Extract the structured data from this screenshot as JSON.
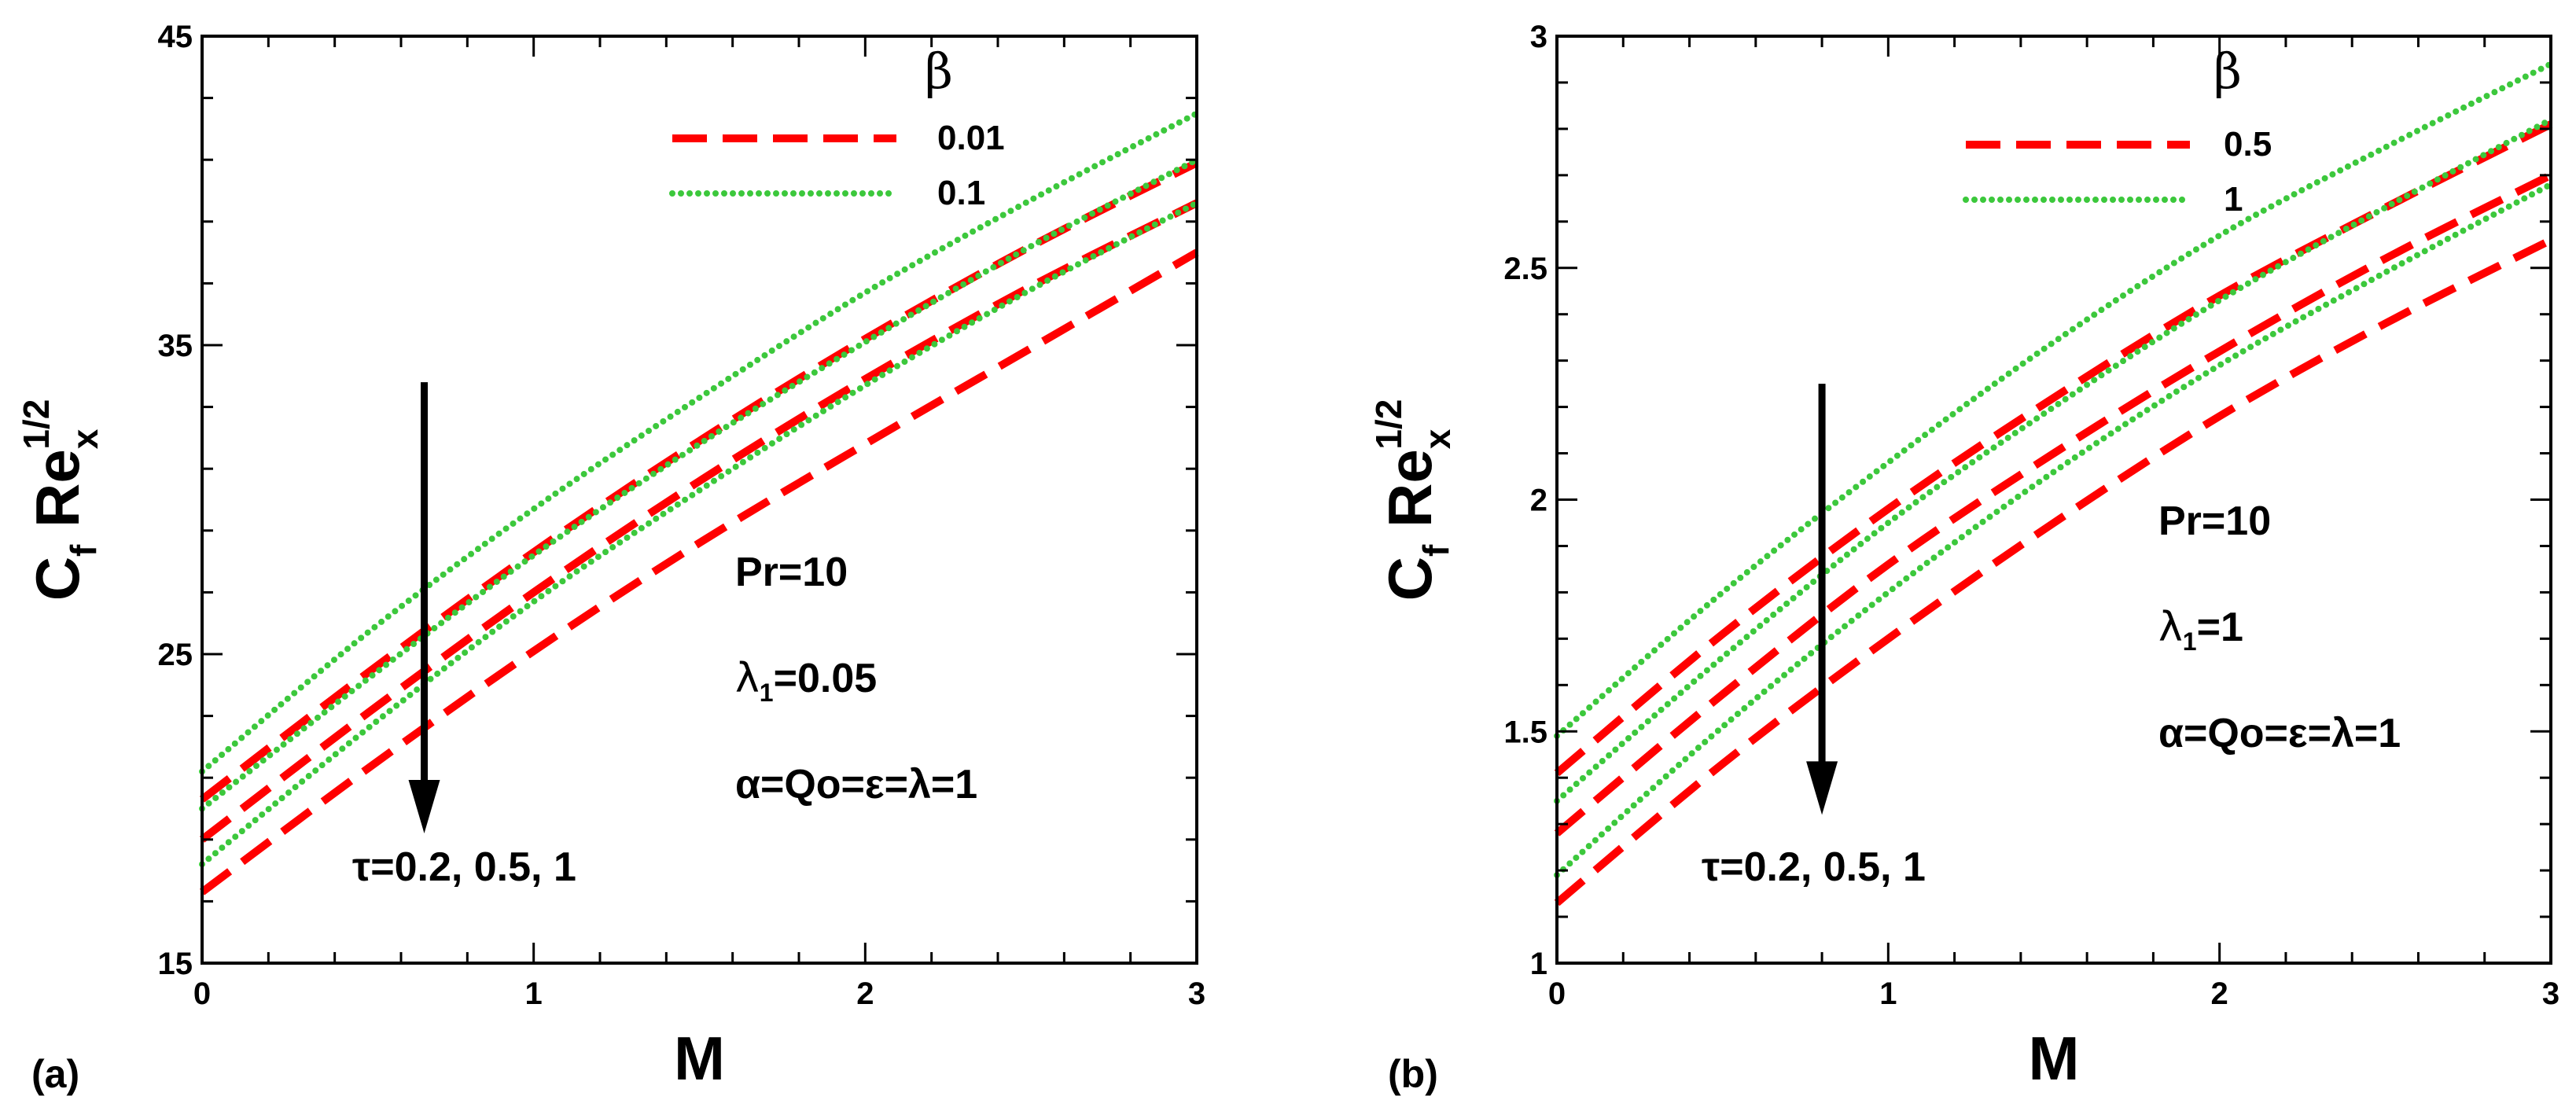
{
  "colors": {
    "red": "#ff0000",
    "green": "#3cc83c",
    "axis": "#000000"
  },
  "chart_data": [
    {
      "type": "line",
      "panel_label": "(a)",
      "xlabel": "M",
      "ylabel_main": "C",
      "ylabel_sub_f": "f",
      "ylabel_re": "Re",
      "ylabel_sub_x": "x",
      "ylabel_sup": "1/2",
      "xlim": [
        0,
        3
      ],
      "ylim": [
        15,
        45
      ],
      "xticks": [
        0,
        1,
        2,
        3
      ],
      "xtick_labels": [
        "0",
        "1",
        "2",
        "3"
      ],
      "yticks": [
        15,
        25,
        35,
        45
      ],
      "ytick_labels": [
        "15",
        "25",
        "35",
        "45"
      ],
      "legend": {
        "title": "β",
        "position": "top-right",
        "entries": [
          {
            "label": "0.01",
            "color": "red",
            "style": "dashed"
          },
          {
            "label": "0.1",
            "color": "green",
            "style": "dotted"
          }
        ]
      },
      "annotations": {
        "pr": "Pr=10",
        "lambda_sym": "λ",
        "lambda_sub": "1",
        "lambda_val": "=0.05",
        "params": "α=Qo=ε=λ=1",
        "tau": "τ=0.2, 0.5, 1"
      },
      "arrow": {
        "x": 0.67,
        "y_start": 33.8,
        "y_end": 19.2
      },
      "x": [
        0,
        0.5,
        1,
        1.5,
        2,
        2.5,
        3
      ],
      "series": [
        {
          "name": "β=0.01, τ=0.2",
          "color": "red",
          "style": "dashed",
          "values": [
            20.3,
            24.4,
            28.3,
            31.9,
            35.2,
            38.2,
            40.9
          ]
        },
        {
          "name": "β=0.01, τ=0.5",
          "color": "red",
          "style": "dashed",
          "values": [
            19.0,
            23.1,
            27.0,
            30.6,
            33.9,
            36.9,
            39.6
          ]
        },
        {
          "name": "β=0.01, τ=1",
          "color": "red",
          "style": "dashed",
          "values": [
            17.3,
            21.3,
            25.1,
            28.6,
            31.8,
            34.9,
            38.0
          ]
        },
        {
          "name": "β=0.1, τ=0.2",
          "color": "green",
          "style": "dotted",
          "values": [
            21.2,
            25.7,
            29.7,
            33.3,
            36.7,
            39.7,
            42.5
          ]
        },
        {
          "name": "β=0.1, τ=0.5",
          "color": "green",
          "style": "dotted",
          "values": [
            20.0,
            24.2,
            28.2,
            31.8,
            35.1,
            38.2,
            41.0
          ]
        },
        {
          "name": "β=0.1, τ=1",
          "color": "green",
          "style": "dotted",
          "values": [
            18.2,
            22.6,
            26.7,
            30.3,
            33.7,
            36.8,
            39.6
          ]
        }
      ]
    },
    {
      "type": "line",
      "panel_label": "(b)",
      "xlabel": "M",
      "ylabel_main": "C",
      "ylabel_sub_f": "f",
      "ylabel_re": "Re",
      "ylabel_sub_x": "x",
      "ylabel_sup": "1/2",
      "xlim": [
        0,
        3
      ],
      "ylim": [
        1,
        3
      ],
      "xticks": [
        0,
        1,
        2,
        3
      ],
      "xtick_labels": [
        "0",
        "1",
        "2",
        "3"
      ],
      "yticks": [
        1,
        1.5,
        2,
        2.5,
        3
      ],
      "ytick_labels": [
        "1",
        "1.5",
        "2",
        "2.5",
        "3"
      ],
      "legend": {
        "title": "β",
        "position": "top-right",
        "entries": [
          {
            "label": "0.5",
            "color": "red",
            "style": "dashed"
          },
          {
            "label": "1",
            "color": "green",
            "style": "dotted"
          }
        ]
      },
      "annotations": {
        "pr": "Pr=10",
        "lambda_sym": "λ",
        "lambda_sub": "1",
        "lambda_val": "=1",
        "params": "α=Qo=ε=λ=1",
        "tau": "τ=0.2, 0.5, 1"
      },
      "arrow": {
        "x": 0.8,
        "y_start": 2.25,
        "y_end": 1.32
      },
      "x": [
        0,
        0.5,
        1,
        1.5,
        2,
        2.5,
        3
      ],
      "series": [
        {
          "name": "β=0.5, τ=0.2",
          "color": "red",
          "style": "dashed",
          "values": [
            1.41,
            1.71,
            1.98,
            2.22,
            2.44,
            2.63,
            2.81
          ]
        },
        {
          "name": "β=0.5, τ=0.5",
          "color": "red",
          "style": "dashed",
          "values": [
            1.28,
            1.58,
            1.86,
            2.1,
            2.32,
            2.52,
            2.7
          ]
        },
        {
          "name": "β=0.5, τ=1",
          "color": "red",
          "style": "dashed",
          "values": [
            1.13,
            1.43,
            1.7,
            1.95,
            2.18,
            2.38,
            2.56
          ]
        },
        {
          "name": "β=1, τ=0.2",
          "color": "green",
          "style": "dotted",
          "values": [
            1.49,
            1.8,
            2.08,
            2.34,
            2.57,
            2.76,
            2.94
          ]
        },
        {
          "name": "β=1, τ=0.5",
          "color": "green",
          "style": "dotted",
          "values": [
            1.35,
            1.66,
            1.95,
            2.2,
            2.43,
            2.63,
            2.82
          ]
        },
        {
          "name": "β=1, τ=1",
          "color": "green",
          "style": "dotted",
          "values": [
            1.19,
            1.51,
            1.8,
            2.06,
            2.29,
            2.49,
            2.68
          ]
        }
      ]
    }
  ]
}
